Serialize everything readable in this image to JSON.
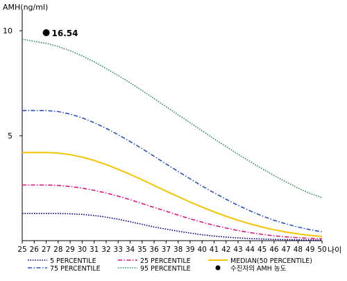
{
  "chart_data": {
    "type": "line",
    "ylabel": "AMH(ng/ml)",
    "xlabel": "나이",
    "x": [
      25,
      26,
      27,
      28,
      29,
      30,
      31,
      32,
      33,
      34,
      35,
      36,
      37,
      38,
      39,
      40,
      41,
      42,
      43,
      44,
      45,
      46,
      47,
      48,
      49,
      50
    ],
    "xlim": [
      25,
      50
    ],
    "ylim": [
      0,
      11
    ],
    "yticks": [
      "5",
      "10"
    ],
    "yticks_values": [
      5,
      10
    ],
    "grid": false,
    "legend_position": "bottom",
    "series": [
      {
        "name": "5 PERCENTILE",
        "color": "#000080",
        "style": "dotted",
        "values": [
          1.3,
          1.3,
          1.3,
          1.3,
          1.28,
          1.25,
          1.2,
          1.12,
          1.02,
          0.9,
          0.78,
          0.65,
          0.55,
          0.45,
          0.36,
          0.28,
          0.22,
          0.17,
          0.13,
          0.1,
          0.08,
          0.06,
          0.05,
          0.04,
          0.03,
          0.03
        ]
      },
      {
        "name": "25 PERCENTILE",
        "color": "#e0127c",
        "style": "dashdot",
        "values": [
          2.65,
          2.65,
          2.65,
          2.63,
          2.58,
          2.5,
          2.4,
          2.27,
          2.12,
          1.95,
          1.77,
          1.58,
          1.4,
          1.22,
          1.04,
          0.88,
          0.73,
          0.6,
          0.48,
          0.38,
          0.3,
          0.23,
          0.18,
          0.14,
          0.11,
          0.09
        ]
      },
      {
        "name": "MEDIAN(50 PERCENTILE)",
        "color": "#f5c400",
        "style": "solid",
        "values": [
          4.2,
          4.2,
          4.2,
          4.17,
          4.1,
          3.98,
          3.82,
          3.62,
          3.4,
          3.16,
          2.9,
          2.63,
          2.36,
          2.1,
          1.84,
          1.6,
          1.37,
          1.16,
          0.97,
          0.8,
          0.65,
          0.52,
          0.41,
          0.32,
          0.25,
          0.2
        ]
      },
      {
        "name": "75 PERCENTILE",
        "color": "#2b4fc2",
        "style": "dashdot",
        "values": [
          6.2,
          6.2,
          6.2,
          6.15,
          6.03,
          5.85,
          5.62,
          5.35,
          5.05,
          4.72,
          4.38,
          4.02,
          3.65,
          3.3,
          2.95,
          2.6,
          2.28,
          1.97,
          1.68,
          1.42,
          1.18,
          0.97,
          0.8,
          0.65,
          0.52,
          0.42
        ]
      },
      {
        "name": "95 PERCENTILE",
        "color": "#2e8b57",
        "style": "dotted",
        "values": [
          9.6,
          9.5,
          9.4,
          9.25,
          9.05,
          8.8,
          8.52,
          8.2,
          7.87,
          7.52,
          7.15,
          6.77,
          6.38,
          6.0,
          5.62,
          5.23,
          4.85,
          4.48,
          4.12,
          3.77,
          3.43,
          3.1,
          2.8,
          2.5,
          2.25,
          2.05
        ]
      }
    ],
    "point": {
      "name": "수진자의 AMH 농도",
      "x": 27,
      "label": "16.54",
      "color": "#000000"
    }
  }
}
